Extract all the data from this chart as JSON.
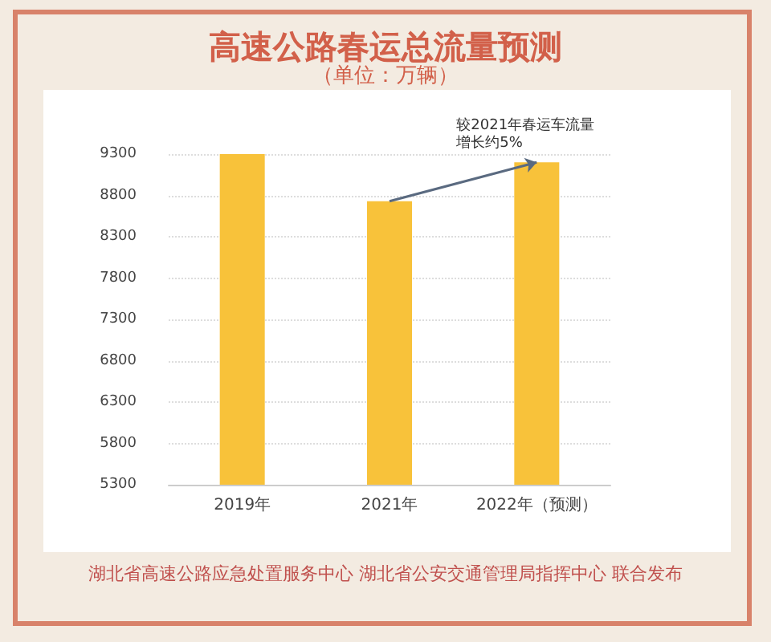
{
  "chart_data": {
    "type": "bar",
    "title": "高速公路春运总流量预测",
    "subtitle": "（单位：万辆）",
    "categories": [
      "2019年",
      "2021年",
      "2022年（预测）"
    ],
    "values": [
      9300,
      8730,
      9200
    ],
    "color": "#f8c23a",
    "ylim": [
      5300,
      9300
    ],
    "yticks": [
      5300,
      5800,
      6300,
      6800,
      7300,
      7800,
      8300,
      8800,
      9300
    ],
    "grid": "y",
    "annotations": [
      {
        "text": "较2021年春运车流量增长约5%",
        "x": "2022年（预测）",
        "y": 9200
      },
      "湖北省高速公路应急处置服务中心 湖北省公安交通管理局指挥中心 联合发布"
    ]
  }
}
